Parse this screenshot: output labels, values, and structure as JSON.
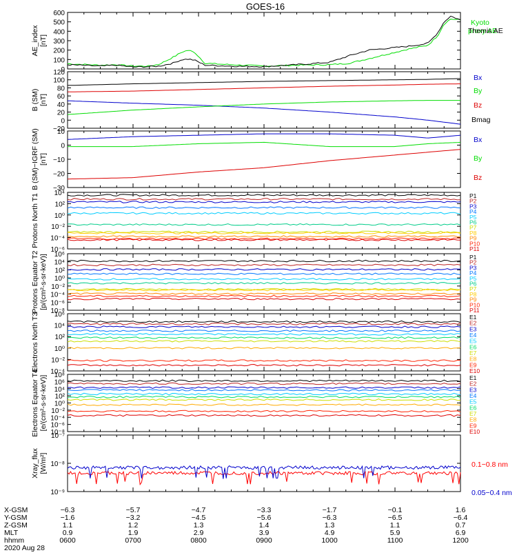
{
  "title": "GOES-16",
  "colors": {
    "black": "#000000",
    "green": "#00dd00",
    "blue": "#0000cc",
    "red": "#dd0000",
    "bright_red": "#ff0000",
    "brown": "#bb2222"
  },
  "chart_data": [
    {
      "type": "line",
      "ylabel": "AE_index [nT]",
      "ylim": [
        0,
        600
      ],
      "yticks": [
        "0",
        "100",
        "200",
        "300",
        "400",
        "500",
        "600"
      ],
      "series": [
        {
          "name": "Kyoto proxy AE",
          "color": "#00dd00",
          "x": [
            6.0,
            6.5,
            6.75,
            7.0,
            7.25,
            7.4,
            7.6,
            7.75,
            7.85,
            7.95,
            8.1,
            8.5,
            9.0,
            9.5,
            10.0,
            10.3,
            10.6,
            10.9,
            11.2,
            11.5,
            11.65,
            11.75,
            11.85,
            12.0
          ],
          "y": [
            55,
            40,
            45,
            30,
            30,
            50,
            120,
            180,
            200,
            170,
            60,
            45,
            30,
            40,
            45,
            60,
            110,
            160,
            210,
            250,
            350,
            480,
            530,
            520
          ]
        },
        {
          "name": "Themis AE",
          "color": "#000000",
          "x": [
            6.0,
            6.5,
            6.75,
            7.0,
            7.25,
            7.4,
            7.6,
            7.75,
            7.85,
            7.95,
            8.1,
            8.5,
            9.0,
            9.5,
            10.0,
            10.3,
            10.6,
            10.9,
            11.2,
            11.5,
            11.65,
            11.75,
            11.85,
            12.0
          ],
          "y": [
            45,
            30,
            40,
            20,
            25,
            30,
            60,
            100,
            105,
            90,
            40,
            30,
            25,
            45,
            70,
            140,
            200,
            220,
            240,
            270,
            380,
            500,
            560,
            520
          ]
        }
      ]
    },
    {
      "type": "line",
      "ylabel": "B (SM) [nT]",
      "ylim": [
        -20,
        120
      ],
      "yticks": [
        "−20",
        "0",
        "20",
        "40",
        "60",
        "80",
        "100",
        "120"
      ],
      "series": [
        {
          "name": "Bx",
          "color": "#0000cc",
          "x": [
            6,
            7,
            8,
            9,
            10,
            11,
            11.5,
            12
          ],
          "y": [
            48,
            42,
            37,
            30,
            20,
            8,
            0,
            -10
          ]
        },
        {
          "name": "By",
          "color": "#00dd00",
          "x": [
            6,
            7,
            8,
            9,
            10,
            11,
            11.5,
            12
          ],
          "y": [
            14,
            25,
            33,
            40,
            45,
            48,
            49,
            49
          ]
        },
        {
          "name": "Bz",
          "color": "#dd0000",
          "x": [
            6,
            7,
            8,
            9,
            10,
            11,
            11.5,
            12
          ],
          "y": [
            70,
            72,
            76,
            80,
            84,
            87,
            89,
            90
          ]
        },
        {
          "name": "Bmag",
          "color": "#000000",
          "x": [
            6,
            7,
            8,
            9,
            10,
            11,
            11.5,
            12
          ],
          "y": [
            86,
            90,
            93,
            96,
            98,
            100,
            101,
            103
          ]
        }
      ]
    },
    {
      "type": "line",
      "ylabel": "B (SM)−IGRF (SM) [nT]",
      "ylim": [
        -30,
        10
      ],
      "yticks": [
        "−30",
        "−20",
        "−10",
        "0",
        "10"
      ],
      "series": [
        {
          "name": "Bx",
          "color": "#0000cc",
          "x": [
            6,
            7,
            8,
            9,
            10,
            11,
            11.5,
            12
          ],
          "y": [
            4,
            6,
            7,
            8,
            8,
            7,
            5,
            7
          ]
        },
        {
          "name": "By",
          "color": "#00dd00",
          "x": [
            6,
            7,
            8,
            9,
            10,
            11,
            11.5,
            12
          ],
          "y": [
            -1,
            -1,
            1,
            2,
            -1,
            -1,
            1,
            2
          ]
        },
        {
          "name": "Bz",
          "color": "#dd0000",
          "x": [
            6,
            7,
            8,
            9,
            10,
            11,
            11.5,
            12
          ],
          "y": [
            -24,
            -23,
            -19,
            -16,
            -11,
            -7,
            -5,
            -3
          ]
        }
      ]
    },
    {
      "type": "line",
      "ylabel": "Protons North T1",
      "yscale": "log",
      "ylim_exp": [
        -6,
        4
      ],
      "yticks": [
        "10⁻⁶",
        "10⁻⁴",
        "10⁻²",
        "10⁰",
        "10²",
        "10⁴"
      ],
      "series": [
        {
          "name": "P1",
          "color": "#000000",
          "level": 3.5
        },
        {
          "name": "P2",
          "color": "#bb2222",
          "level": 2.8
        },
        {
          "name": "P3",
          "color": "#0000cc",
          "level": 2.3
        },
        {
          "name": "P4",
          "color": "#0077ff",
          "level": 1.3
        },
        {
          "name": "P5",
          "color": "#00ccff",
          "level": 0.3
        },
        {
          "name": "P6",
          "color": "#00cc88",
          "level": -1.7
        },
        {
          "name": "P7",
          "color": "#ccdd00",
          "level": -3.0
        },
        {
          "name": "P8",
          "color": "#ffcc00",
          "level": -3.2
        },
        {
          "name": "P9",
          "color": "#ff8800",
          "level": -3.8
        },
        {
          "name": "P10",
          "color": "#ff2200",
          "level": -4.2
        },
        {
          "name": "P11",
          "color": "#dd0000",
          "level": -4.4
        }
      ]
    },
    {
      "type": "line",
      "ylabel": "Protons Equator T2 [p/(cm²-s-sr-keV)]",
      "yscale": "log",
      "ylim_exp": [
        -8,
        6
      ],
      "yticks": [
        "10⁻⁸",
        "10⁻⁶",
        "10⁻⁴",
        "10⁻²",
        "10⁰",
        "10²",
        "10⁴",
        "10⁶"
      ],
      "series": [
        {
          "name": "P1",
          "color": "#000000",
          "level": 4.2
        },
        {
          "name": "P2",
          "color": "#bb2222",
          "level": 3.2
        },
        {
          "name": "P3",
          "color": "#0000cc",
          "level": 2.1
        },
        {
          "name": "P4",
          "color": "#0077ff",
          "level": 1.0
        },
        {
          "name": "P5",
          "color": "#00ccff",
          "level": -0.3
        },
        {
          "name": "P6",
          "color": "#00cc88",
          "level": -1.3
        },
        {
          "name": "P7",
          "color": "#ccdd00",
          "level": -2.8
        },
        {
          "name": "P8",
          "color": "#ffcc00",
          "level": -3.0
        },
        {
          "name": "P9",
          "color": "#ff8800",
          "level": -3.9
        },
        {
          "name": "P10",
          "color": "#ff2200",
          "level": -4.5
        },
        {
          "name": "P11",
          "color": "#dd0000",
          "level": -5.2
        }
      ]
    },
    {
      "type": "line",
      "ylabel": "Electrons North T3",
      "yscale": "log",
      "ylim_exp": [
        -4,
        6
      ],
      "yticks": [
        "10⁻⁴",
        "10⁻²",
        "10⁰",
        "10²",
        "10⁴",
        "10⁶"
      ],
      "series": [
        {
          "name": "E1",
          "color": "#000000",
          "level": 4.6
        },
        {
          "name": "E2",
          "color": "#bb2222",
          "level": 4.2
        },
        {
          "name": "E3",
          "color": "#0000cc",
          "level": 3.7
        },
        {
          "name": "E4",
          "color": "#0077ff",
          "level": 3.0
        },
        {
          "name": "E5",
          "color": "#00ccff",
          "level": 2.4
        },
        {
          "name": "E6",
          "color": "#00dd66",
          "level": 1.8
        },
        {
          "name": "E7",
          "color": "#ccdd00",
          "level": 1.2
        },
        {
          "name": "E8",
          "color": "#ffaa00",
          "level": 0.0
        },
        {
          "name": "E9",
          "color": "#ff2200",
          "level": -2.2
        },
        {
          "name": "E10",
          "color": "#dd0000",
          "level": -3.0
        }
      ]
    },
    {
      "type": "line",
      "ylabel": "Electrons Equator T4 [e/(cm²-s-sr-keV)]",
      "yscale": "log",
      "ylim_exp": [
        -8,
        8
      ],
      "yticks": [
        "10⁻⁸",
        "10⁻⁶",
        "10⁻⁴",
        "10⁻²",
        "10⁰",
        "10²",
        "10⁴",
        "10⁶",
        "10⁸"
      ],
      "series": [
        {
          "name": "E1",
          "color": "#000000",
          "level": 6.2
        },
        {
          "name": "E2",
          "color": "#bb2222",
          "level": 5.4
        },
        {
          "name": "E3",
          "color": "#0000cc",
          "level": 4.3
        },
        {
          "name": "E4",
          "color": "#0077ff",
          "level": 3.6
        },
        {
          "name": "E5",
          "color": "#00ccff",
          "level": 2.5
        },
        {
          "name": "E6",
          "color": "#00dd66",
          "level": 1.7
        },
        {
          "name": "E7",
          "color": "#ccdd00",
          "level": 0.9
        },
        {
          "name": "E8",
          "color": "#ffaa00",
          "level": -0.5
        },
        {
          "name": "E9",
          "color": "#ff2200",
          "level": -2.3
        },
        {
          "name": "E10",
          "color": "#dd0000",
          "level": -3.5
        }
      ]
    },
    {
      "type": "line",
      "ylabel": "Xray_flux [W/m²]",
      "yscale": "log",
      "ylim_exp": [
        -9,
        -7
      ],
      "yticks": [
        "10⁻⁹",
        "10⁻⁸",
        "10⁻⁷"
      ],
      "series": [
        {
          "name": "0.1−0.8 nm",
          "color": "#ff0000",
          "level": -8.35
        },
        {
          "name": "0.05−0.4 nm",
          "color": "#0000cc",
          "level": -8.15
        }
      ]
    }
  ],
  "xaxis": {
    "xlim": [
      6,
      12
    ],
    "row_labels": [
      "X-GSM",
      "Y-GSM",
      "Z-GSM",
      "MLT",
      "hhmm"
    ],
    "columns": [
      [
        "−6.3",
        "−1.6",
        "1.1",
        "0.9",
        "0600"
      ],
      [
        "−5.7",
        "−3.2",
        "1.2",
        "1.9",
        "0700"
      ],
      [
        "−4.7",
        "−4.5",
        "1.3",
        "2.9",
        "0800"
      ],
      [
        "−3.3",
        "−5.6",
        "1.4",
        "3.9",
        "0900"
      ],
      [
        "−1.7",
        "−6.3",
        "1.3",
        "4.9",
        "1000"
      ],
      [
        "−0.1",
        "−6.5",
        "1.1",
        "5.9",
        "1100"
      ],
      [
        "1.6",
        "−6.4",
        "0.7",
        "6.9",
        "1200"
      ]
    ],
    "date": "2020 Aug 28"
  }
}
